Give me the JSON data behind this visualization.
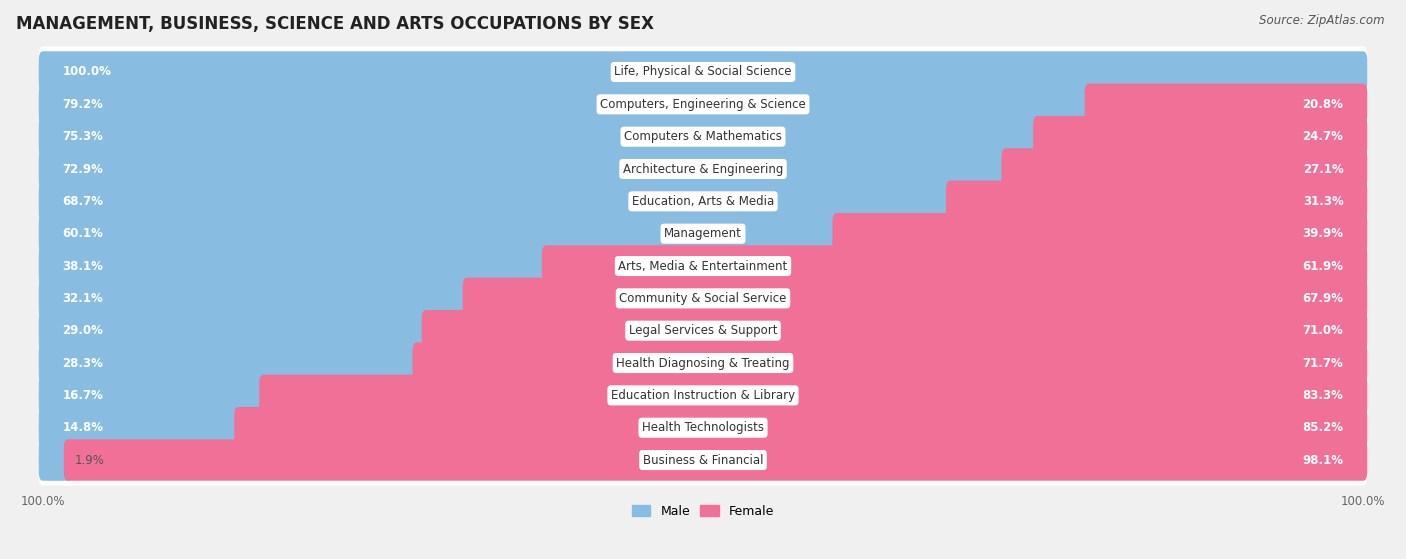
{
  "title": "MANAGEMENT, BUSINESS, SCIENCE AND ARTS OCCUPATIONS BY SEX",
  "source": "Source: ZipAtlas.com",
  "categories": [
    "Life, Physical & Social Science",
    "Computers, Engineering & Science",
    "Computers & Mathematics",
    "Architecture & Engineering",
    "Education, Arts & Media",
    "Management",
    "Arts, Media & Entertainment",
    "Community & Social Service",
    "Legal Services & Support",
    "Health Diagnosing & Treating",
    "Education Instruction & Library",
    "Health Technologists",
    "Business & Financial"
  ],
  "male_pct": [
    100.0,
    79.2,
    75.3,
    72.9,
    68.7,
    60.1,
    38.1,
    32.1,
    29.0,
    28.3,
    16.7,
    14.8,
    1.9
  ],
  "female_pct": [
    0.0,
    20.8,
    24.7,
    27.1,
    31.3,
    39.9,
    61.9,
    67.9,
    71.0,
    71.7,
    83.3,
    85.2,
    98.1
  ],
  "male_color": "#88bce0",
  "female_color": "#f07098",
  "background_color": "#f0f0f0",
  "row_bg_color": "#e0e0e8",
  "bar_bg_color": "#ffffff",
  "title_fontsize": 12,
  "label_fontsize": 8.5,
  "pct_fontsize": 8.5,
  "legend_fontsize": 9,
  "source_fontsize": 8.5
}
